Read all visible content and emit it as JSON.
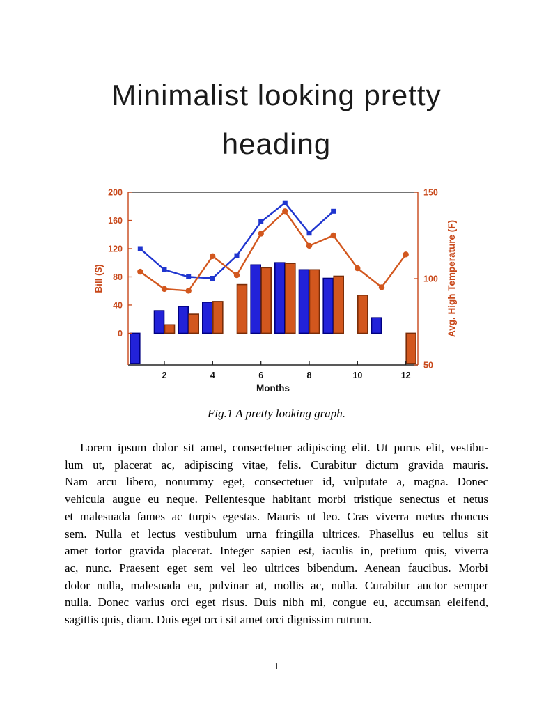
{
  "document": {
    "heading": {
      "line1": "Minimalist looking pretty",
      "line2": "heading"
    },
    "figure_caption": "Fig.1 A pretty looking graph.",
    "paragraph_lines": [
      "Lorem ipsum dolor sit amet, consectetuer adipiscing elit. Ut purus elit, vestibu-",
      "lum ut, placerat ac, adipiscing vitae, felis. Curabitur dictum gravida mauris.",
      "Nam arcu libero, nonummy eget, consectetuer id, vulputate a, magna. Donec",
      "vehicula augue eu neque. Pellentesque habitant morbi tristique senectus et netus",
      "et malesuada fames ac turpis egestas. Mauris ut leo. Cras viverra metus rhoncus",
      "sem. Nulla et lectus vestibulum urna fringilla ultrices. Phasellus eu tellus sit",
      "amet tortor gravida placerat. Integer sapien est, iaculis in, pretium quis, viverra",
      "ac, nunc. Praesent eget sem vel leo ultrices bibendum. Aenean faucibus. Morbi",
      "dolor nulla, malesuada eu, pulvinar at, mollis ac, nulla. Curabitur auctor semper",
      "nulla. Donec varius orci eget risus. Duis nibh mi, congue eu, accumsan eleifend,",
      "sagittis quis, diam. Duis eget orci sit amet orci dignissim rutrum."
    ],
    "page_number": "1"
  },
  "chart_data": {
    "type": "bar",
    "subtype": "grouped bars with two overlaid lines, dual y-axes",
    "title": "",
    "xlabel": "Months",
    "months": [
      1,
      2,
      3,
      4,
      5,
      6,
      7,
      8,
      9,
      10,
      11,
      12
    ],
    "x_ticks": [
      2,
      4,
      6,
      8,
      10,
      12
    ],
    "xlim": [
      0.5,
      12.5
    ],
    "grid": false,
    "legend": "none",
    "left_axis": {
      "label": "Bill ($)",
      "ticks": [
        0,
        40,
        80,
        120,
        160,
        200
      ],
      "lim": [
        -45,
        200
      ],
      "color": "#c8481a"
    },
    "right_axis": {
      "label": "Avg. High Temperature (F)",
      "ticks": [
        50,
        100,
        150
      ],
      "lim": [
        50,
        150
      ],
      "color": "#c8481a"
    },
    "series": [
      {
        "name": "bill-bars",
        "kind": "bar",
        "axis": "left",
        "fill": "#2222d9",
        "stroke": "#000080",
        "values": [
          -43,
          32,
          38,
          44,
          null,
          97,
          100,
          90,
          78,
          null,
          22,
          null
        ]
      },
      {
        "name": "temperature-bars",
        "kind": "bar",
        "axis": "left",
        "fill": "#d2571e",
        "stroke": "#7a2d08",
        "values": [
          null,
          12,
          27,
          45,
          69,
          93,
          99,
          90,
          81,
          54,
          null,
          -43
        ]
      },
      {
        "name": "bill-line",
        "kind": "line",
        "axis": "left",
        "color": "#1f35cf",
        "marker": "square",
        "values": [
          120,
          90,
          80,
          78,
          110,
          158,
          185,
          142,
          173,
          null,
          null,
          null
        ]
      },
      {
        "name": "temperature-line",
        "kind": "line",
        "axis": "right",
        "color": "#d2571e",
        "marker": "circle",
        "values": [
          104,
          94,
          93,
          113,
          102,
          126,
          139,
          119,
          125,
          106,
          95,
          114
        ]
      }
    ]
  }
}
